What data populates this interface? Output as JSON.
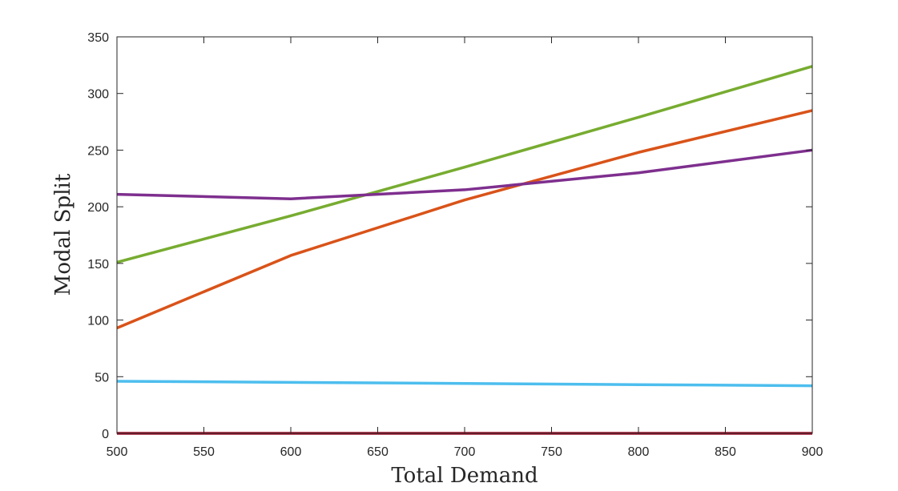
{
  "chart_data": {
    "type": "line",
    "title": "",
    "xlabel": "Total Demand",
    "ylabel": "Modal Split",
    "xlim": [
      500,
      900
    ],
    "ylim": [
      0,
      350
    ],
    "x_ticks": [
      500,
      550,
      600,
      650,
      700,
      750,
      800,
      850,
      900
    ],
    "y_ticks": [
      0,
      50,
      100,
      150,
      200,
      250,
      300,
      350
    ],
    "grid": false,
    "legend": "none",
    "x": [
      500,
      600,
      700,
      800,
      900
    ],
    "series": [
      {
        "color": "#77AC30",
        "values": [
          151,
          192,
          235,
          279,
          324
        ]
      },
      {
        "color": "#D95319",
        "values": [
          93,
          157,
          206,
          248,
          285
        ]
      },
      {
        "color": "#7E2F8E",
        "values": [
          211,
          207,
          215,
          230,
          250
        ]
      },
      {
        "color": "#4DBEEE",
        "values": [
          46,
          45,
          44,
          43,
          42
        ]
      },
      {
        "color": "#A2142F",
        "values": [
          0,
          0,
          0,
          0,
          0
        ]
      }
    ]
  }
}
